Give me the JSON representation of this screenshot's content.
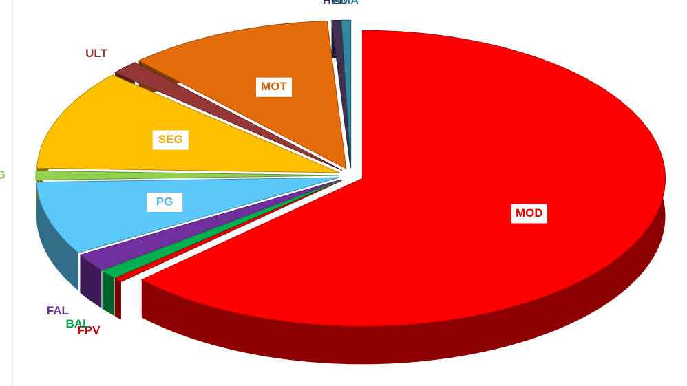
{
  "chart_data": {
    "type": "pie",
    "categories": [
      "MOD",
      "FPV",
      "BAL",
      "FAL",
      "PG",
      "HG",
      "SEG",
      "ULT",
      "MOT",
      "HEL",
      "AMA"
    ],
    "values": [
      63,
      0.5,
      1,
      2,
      8,
      1,
      11,
      1.5,
      11,
      0.5,
      0.5
    ],
    "colors": [
      "#ff0000",
      "#e00000",
      "#00b050",
      "#7030a0",
      "#5bc8fa",
      "#92d050",
      "#ffc000",
      "#953735",
      "#e46c0a",
      "#403152",
      "#31859c"
    ]
  }
}
